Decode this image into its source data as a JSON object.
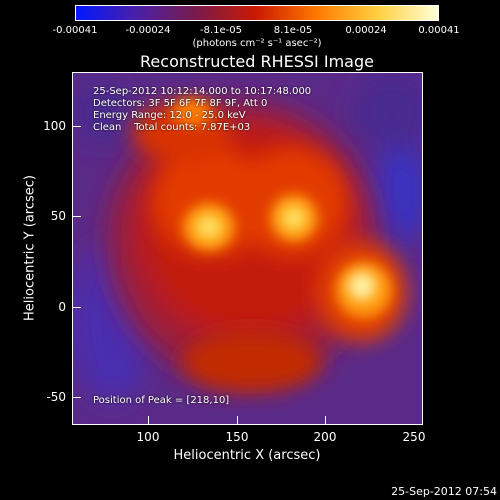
{
  "colorbar": {
    "ticks": [
      "-0.00041",
      "-0.00024",
      "-8.1e-05",
      "8.1e-05",
      "0.00024",
      "0.00041"
    ],
    "units_line": "(photons cm⁻² s⁻¹ asec⁻²)",
    "colors": [
      "#0018ff",
      "#4a1fa8",
      "#7a1a4a",
      "#cc1a00",
      "#ff7a00",
      "#ffd040",
      "#ffffd8"
    ]
  },
  "title": "Reconstructed RHESSI Image",
  "annotations": {
    "line1": "25-Sep-2012 10:12:14.000 to 10:17:48.000",
    "line2": "Detectors: 3F 5F 6F 7F 8F 9F, Att 0",
    "line3": "Energy Range: 12.0 - 25.0 keV",
    "line4": "Clean    Total counts: 7.87E+03",
    "peak": "Position of Peak = [218,10]"
  },
  "x_axis": {
    "label": "Heliocentric X (arcsec)",
    "ticks": [
      "100",
      "150",
      "200",
      "250"
    ]
  },
  "y_axis": {
    "label": "Heliocentric Y (arcsec)",
    "ticks": [
      "100",
      "50",
      "0",
      "-50"
    ]
  },
  "timestamp": "25-Sep-2012 07:54"
}
